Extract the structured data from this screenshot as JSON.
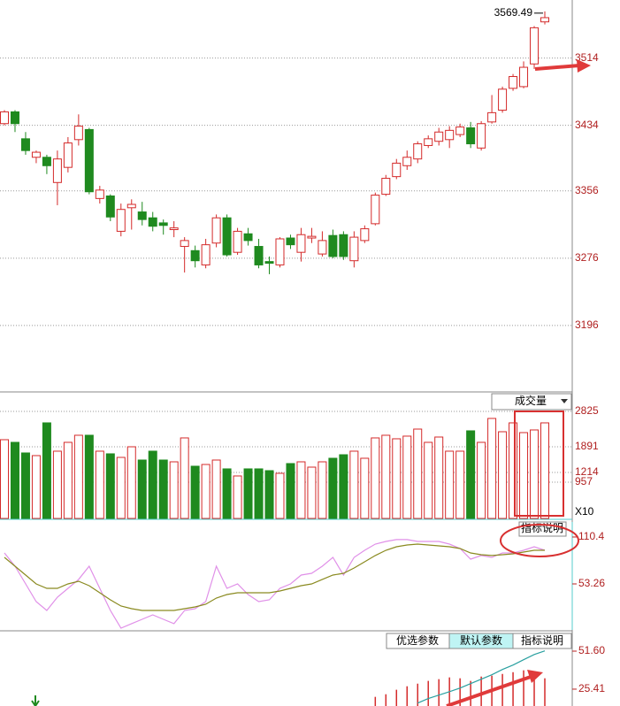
{
  "chart_data": [
    {
      "type": "candlestick",
      "up_color": "#d42a2a",
      "down_color": "#1f8a1f",
      "grid": true,
      "ylim": [
        3117,
        3583
      ],
      "yticks": [
        3514,
        3434,
        3356,
        3276,
        3196
      ],
      "open": [
        3436,
        3450,
        3418,
        3396,
        3396,
        3366,
        3384,
        3417,
        3429,
        3347,
        3350,
        3308,
        3336,
        3331,
        3324,
        3318,
        3310,
        3290,
        3285,
        3268,
        3294,
        3324,
        3283,
        3305,
        3290,
        3272,
        3268,
        3300,
        3283,
        3300,
        3281,
        3303,
        3304,
        3273,
        3297,
        3317,
        3352,
        3373,
        3386,
        3394,
        3410,
        3415,
        3417,
        3423,
        3431,
        3407,
        3438,
        3452,
        3478,
        3480,
        3507,
        3557
      ],
      "high": [
        3452,
        3452,
        3426,
        3404,
        3399,
        3404,
        3420,
        3447,
        3431,
        3362,
        3352,
        3341,
        3346,
        3343,
        3331,
        3322,
        3320,
        3301,
        3291,
        3299,
        3328,
        3328,
        3312,
        3312,
        3299,
        3278,
        3301,
        3304,
        3312,
        3312,
        3308,
        3310,
        3308,
        3308,
        3315,
        3354,
        3375,
        3394,
        3404,
        3415,
        3422,
        3431,
        3433,
        3436,
        3438,
        3439,
        3470,
        3480,
        3495,
        3510,
        3552,
        3569.49
      ],
      "low": [
        3434,
        3426,
        3399,
        3389,
        3376,
        3339,
        3378,
        3410,
        3352,
        3341,
        3320,
        3302,
        3310,
        3315,
        3308,
        3304,
        3301,
        3259,
        3265,
        3264,
        3289,
        3278,
        3280,
        3291,
        3264,
        3257,
        3265,
        3287,
        3272,
        3294,
        3278,
        3276,
        3274,
        3265,
        3294,
        3315,
        3350,
        3370,
        3381,
        3389,
        3407,
        3410,
        3407,
        3420,
        3407,
        3404,
        3436,
        3449,
        3475,
        3478,
        3501,
        3554
      ],
      "close": [
        3450,
        3436,
        3404,
        3402,
        3386,
        3394,
        3413,
        3433,
        3355,
        3357,
        3325,
        3334,
        3340,
        3322,
        3314,
        3315,
        3312,
        3297,
        3273,
        3292,
        3324,
        3280,
        3308,
        3297,
        3268,
        3270,
        3299,
        3292,
        3304,
        3302,
        3297,
        3278,
        3278,
        3301,
        3311,
        3351,
        3371,
        3389,
        3396,
        3412,
        3418,
        3426,
        3428,
        3432,
        3412,
        3436,
        3449,
        3477,
        3492,
        3503,
        3550,
        3562
      ]
    },
    {
      "type": "volume",
      "title": "成交量",
      "unit_label": "X10",
      "grid": true,
      "ylim": [
        0,
        3245
      ],
      "yticks": [
        2825,
        1891,
        1214,
        957
      ],
      "values": [
        2078,
        2008,
        1728,
        1658,
        2522,
        1775,
        2008,
        2195,
        2195,
        1775,
        1705,
        1611,
        1891,
        1541,
        1775,
        1541,
        1494,
        2125,
        1378,
        1424,
        1541,
        1308,
        1121,
        1308,
        1308,
        1261,
        1191,
        1448,
        1494,
        1354,
        1494,
        1588,
        1681,
        1775,
        1588,
        2125,
        2195,
        2102,
        2172,
        2358,
        2008,
        2148,
        1775,
        1775,
        2312,
        2008,
        2639,
        2288,
        2522,
        2265,
        2335,
        2522
      ]
    },
    {
      "type": "line",
      "button": "指标说明",
      "ylim": [
        -2.8,
        128.7
      ],
      "yticks": [
        110.4,
        53.26
      ],
      "series": [
        {
          "color": "#e090e8",
          "values": [
            91.0,
            74.8,
            53.3,
            31.7,
            20.9,
            37.1,
            47.9,
            58.7,
            74.8,
            47.9,
            20.9,
            -0.6,
            4.8,
            10.1,
            15.5,
            10.1,
            4.8,
            20.9,
            23.1,
            31.7,
            74.8,
            47.9,
            53.3,
            40.3,
            31.7,
            33.9,
            47.9,
            53.3,
            64.0,
            66.2,
            74.8,
            85.6,
            64.0,
            85.6,
            94.2,
            101.8,
            105.0,
            107.2,
            107.2,
            105.0,
            105.0,
            105.0,
            101.8,
            96.4,
            83.4,
            87.8,
            85.6,
            91.0,
            91.0,
            94.2,
            98.5,
            94.2
          ]
        },
        {
          "color": "#8a8a20",
          "values": [
            85.6,
            74.8,
            64.0,
            53.3,
            47.9,
            47.9,
            53.3,
            56.5,
            51.1,
            42.5,
            33.9,
            26.3,
            23.1,
            20.9,
            20.9,
            20.9,
            20.9,
            23.1,
            25.2,
            28.5,
            36.0,
            40.3,
            42.5,
            42.5,
            42.5,
            42.5,
            44.6,
            47.9,
            51.1,
            53.3,
            58.7,
            64.0,
            66.2,
            72.7,
            80.2,
            87.8,
            94.2,
            98.5,
            100.7,
            101.8,
            100.7,
            99.6,
            98.5,
            96.4,
            91.0,
            88.8,
            87.8,
            88.8,
            89.9,
            92.1,
            94.2,
            94.2
          ]
        }
      ]
    },
    {
      "type": "macd",
      "buttons": [
        "优选参数",
        "默认参数",
        "指标说明"
      ],
      "ylim": [
        13.8,
        64.4
      ],
      "yticks": [
        {
          "value": 51.6,
          "label": "51.60"
        },
        25.41
      ],
      "bar_color": "#d42a2a",
      "values": [
        null,
        null,
        null,
        null,
        null,
        null,
        null,
        null,
        null,
        null,
        null,
        null,
        null,
        null,
        null,
        null,
        null,
        null,
        null,
        null,
        null,
        null,
        null,
        null,
        null,
        null,
        null,
        null,
        null,
        null,
        null,
        null,
        null,
        null,
        null,
        20.1,
        21.9,
        25.0,
        27.4,
        29.2,
        31.1,
        32.3,
        33.5,
        32.9,
        31.1,
        34.1,
        34.7,
        35.9,
        37.1,
        38.4,
        35.3,
        32.9
      ],
      "series": [
        {
          "color": "#2aa0a0",
          "values": [
            null,
            null,
            null,
            null,
            null,
            null,
            null,
            null,
            null,
            null,
            null,
            null,
            null,
            null,
            null,
            null,
            null,
            null,
            null,
            null,
            null,
            null,
            null,
            null,
            null,
            null,
            null,
            null,
            null,
            null,
            null,
            null,
            null,
            null,
            null,
            null,
            null,
            null,
            null,
            15.8,
            18.9,
            21.3,
            23.7,
            26.2,
            29.2,
            32.3,
            35.3,
            39.0,
            42.0,
            45.7,
            49.3,
            51.8
          ]
        }
      ]
    }
  ]
}
